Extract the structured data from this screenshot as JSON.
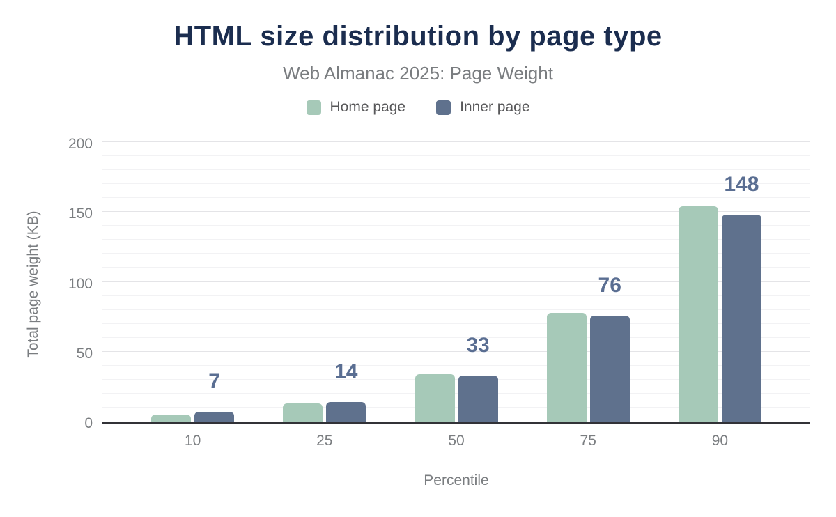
{
  "header": {
    "title": "HTML size distribution by page type",
    "subtitle": "Web Almanac 2025: Page Weight"
  },
  "legend": {
    "items": [
      {
        "label": "Home page",
        "color": "#a6c9b8"
      },
      {
        "label": "Inner page",
        "color": "#5f718d"
      }
    ]
  },
  "chart_data": {
    "type": "bar",
    "title": "HTML size distribution by page type",
    "subtitle": "Web Almanac 2025: Page Weight",
    "categories": [
      "10",
      "25",
      "50",
      "75",
      "90"
    ],
    "series": [
      {
        "name": "Home page",
        "color": "#a6c9b8",
        "values": [
          5,
          13,
          34,
          78,
          154
        ],
        "show_value_labels": false
      },
      {
        "name": "Inner page",
        "color": "#5f718d",
        "values": [
          7,
          14,
          33,
          76,
          148
        ],
        "show_value_labels": true
      }
    ],
    "data_labels_shown": [
      7,
      14,
      33,
      76,
      148
    ],
    "xlabel": "Percentile",
    "ylabel": "Total page weight (KB)",
    "ylim": [
      0,
      200
    ],
    "yticks": [
      0,
      50,
      100,
      150,
      200
    ],
    "grid": {
      "minor_step": 10,
      "major_step": 50,
      "grid_on": true
    },
    "legend_position": "top"
  },
  "colors": {
    "title": "#1b2d4f",
    "subtitle": "#7a7d80",
    "axis_text": "#7a7d80",
    "legend_text": "#58585a",
    "axis_line": "#323237",
    "grid_major": "#e4e4e7",
    "grid_minor": "#f2f2f4",
    "data_label": "#5a6e92",
    "background": "#ffffff"
  }
}
